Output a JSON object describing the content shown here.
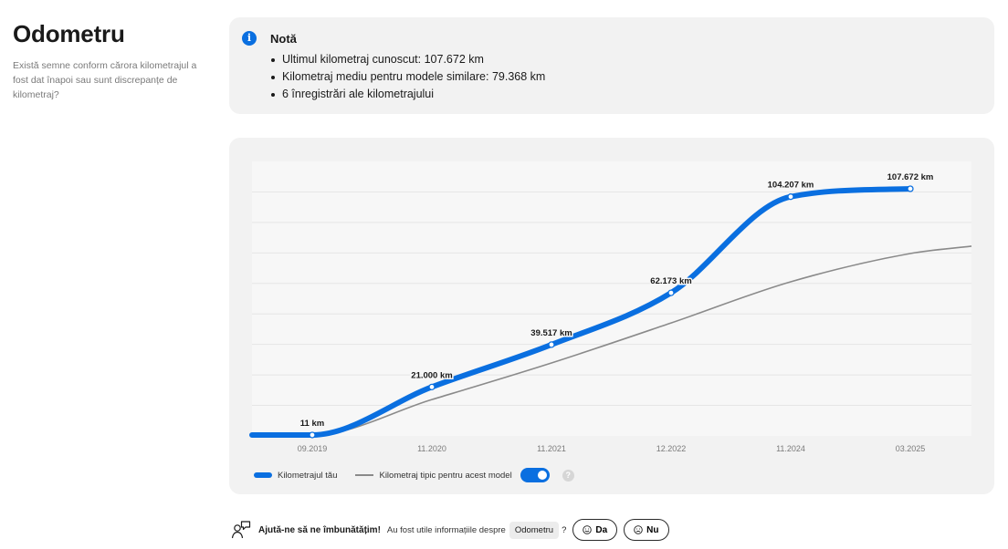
{
  "header": {
    "title": "Odometru",
    "subtitle": "Există semne conform cărora kilometrajul a fost dat înapoi sau sunt discrepanțe de kilometraj?"
  },
  "note": {
    "icon": "info-icon",
    "title": "Notă",
    "items": [
      "Ultimul kilometraj cunoscut: 107.672 km",
      "Kilometraj mediu pentru modele similare: 79.368 km",
      "6 înregistrări ale kilometrajului"
    ]
  },
  "chart_data": {
    "type": "line",
    "x_ticks": [
      "09.2019",
      "11.2020",
      "11.2021",
      "12.2022",
      "11.2024",
      "03.2025"
    ],
    "series": [
      {
        "name": "Kilometrajul tău",
        "color": "#0a6fe0",
        "points": [
          {
            "x": "09.2019",
            "y": 11,
            "label": "11 km"
          },
          {
            "x": "11.2020",
            "y": 21000,
            "label": "21.000 km"
          },
          {
            "x": "11.2021",
            "y": 39517,
            "label": "39.517 km"
          },
          {
            "x": "12.2022",
            "y": 62173,
            "label": "62.173 km"
          },
          {
            "x": "11.2024",
            "y": 104207,
            "label": "104.207 km"
          },
          {
            "x": "03.2025",
            "y": 107672,
            "label": "107.672 km"
          }
        ]
      },
      {
        "name": "Kilometraj tipic pentru acest model",
        "color": "#8a8a8a",
        "points": [
          {
            "x": "09.2019",
            "y": 0
          },
          {
            "x": "11.2020",
            "y": 15500
          },
          {
            "x": "11.2021",
            "y": 31500
          },
          {
            "x": "12.2022",
            "y": 49000
          },
          {
            "x": "11.2024",
            "y": 67000
          },
          {
            "x": "03.2025",
            "y": 79368
          }
        ]
      }
    ],
    "ylim": [
      0,
      115000
    ],
    "grid": true,
    "legend_position": "bottom-left"
  },
  "legend": {
    "series_1": "Kilometrajul tău",
    "series_2": "Kilometraj tipic pentru acest model",
    "toggle_on": true,
    "help_icon": "question-icon",
    "help_text": "?"
  },
  "feedback": {
    "icon": "feedback-person-icon",
    "title": "Ajută-ne să ne îmbunătățim!",
    "question": "Au fost utile informațiile despre",
    "tag": "Odometru",
    "qmark": "?",
    "yes_label": "Da",
    "no_label": "Nu"
  },
  "colors": {
    "accent": "#0a6fe0",
    "card_bg": "#f2f2f2",
    "typical_line": "#8a8a8a"
  }
}
